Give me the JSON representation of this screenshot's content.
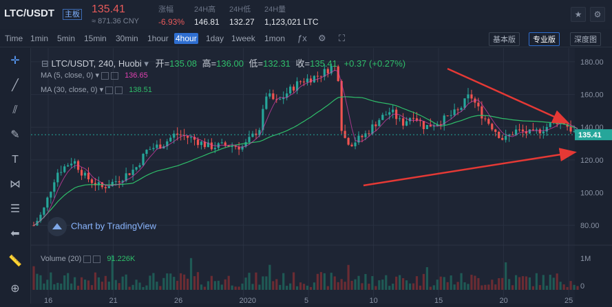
{
  "header": {
    "pair": "LTC/USDT",
    "main_tag": "主板",
    "price": "135.41",
    "cny": "≈ 871.36 CNY",
    "change_label": "涨幅",
    "change_value": "-6.93%",
    "high_label": "24H高",
    "high_value": "146.81",
    "low_label": "24H低",
    "low_value": "132.27",
    "vol_label": "24H量",
    "vol_value": "1,123,021 LTC",
    "star_icon": "star-icon",
    "settings_icon": "gear-icon"
  },
  "toolbar": {
    "intervals": [
      "Time",
      "1min",
      "5min",
      "15min",
      "30min",
      "1hour",
      "4hour",
      "1day",
      "1week",
      "1mon"
    ],
    "active_interval": "4hour",
    "view_basic": "基本版",
    "view_pro": "专业版",
    "view_depth": "深度图"
  },
  "legend": {
    "symbol": "LTC/USDT, 240, Huobi",
    "open_label": "开=",
    "open": "135.08",
    "high_label": "高=",
    "high": "136.00",
    "low_label": "低=",
    "low": "132.31",
    "close_label": "收=",
    "close": "135.41",
    "change": "+0.37 (+0.27%)",
    "ma5_label": "MA (5, close, 0)",
    "ma5_value": "136.65",
    "ma30_label": "MA (30, close, 0)",
    "ma30_value": "138.51",
    "volume_label": "Volume (20)",
    "volume_value": "91.226K"
  },
  "watermark": "Chart by TradingView",
  "price_axis": [
    "180.00",
    "160.00",
    "140.00",
    "120.00",
    "100.00",
    "80.00"
  ],
  "last_price_tag": "135.41",
  "volume_axis": [
    "1M",
    "0"
  ],
  "time_axis": [
    "16",
    "21",
    "26",
    "2020",
    "5",
    "10",
    "15",
    "20",
    "25"
  ],
  "colors": {
    "up": "#26a69a",
    "down": "#ef5350",
    "accent": "#2f6fd1",
    "ma5": "#e040b0",
    "ma30": "#2fbf6a"
  },
  "chart_data": {
    "type": "candlestick",
    "x": [
      "16",
      "21",
      "26",
      "2020",
      "5",
      "10",
      "15",
      "20",
      "25"
    ],
    "price_range": [
      70,
      185
    ],
    "volume_range": [
      0,
      1000000
    ],
    "ma5_color": "#e040b0",
    "ma30_color": "#2fbf6a",
    "last_price": 135.41,
    "close_path": [
      [
        0,
        80
      ],
      [
        8,
        88
      ],
      [
        20,
        112
      ],
      [
        35,
        120
      ],
      [
        45,
        110
      ],
      [
        60,
        103
      ],
      [
        75,
        108
      ],
      [
        90,
        115
      ],
      [
        100,
        126
      ],
      [
        115,
        130
      ],
      [
        125,
        136
      ],
      [
        140,
        133
      ],
      [
        155,
        128
      ],
      [
        170,
        129
      ],
      [
        185,
        128
      ],
      [
        200,
        140
      ],
      [
        205,
        160
      ],
      [
        215,
        155
      ],
      [
        225,
        162
      ],
      [
        235,
        168
      ],
      [
        245,
        170
      ],
      [
        255,
        173
      ],
      [
        265,
        178
      ],
      [
        270,
        168
      ],
      [
        272,
        135
      ],
      [
        280,
        130
      ],
      [
        292,
        135
      ],
      [
        305,
        145
      ],
      [
        315,
        150
      ],
      [
        325,
        142
      ],
      [
        335,
        148
      ],
      [
        345,
        140
      ],
      [
        360,
        144
      ],
      [
        375,
        150
      ],
      [
        385,
        160
      ],
      [
        395,
        148
      ],
      [
        405,
        140
      ],
      [
        415,
        132
      ],
      [
        425,
        138
      ],
      [
        440,
        136
      ],
      [
        455,
        141
      ],
      [
        465,
        145
      ],
      [
        475,
        138
      ],
      [
        480,
        135
      ]
    ]
  }
}
